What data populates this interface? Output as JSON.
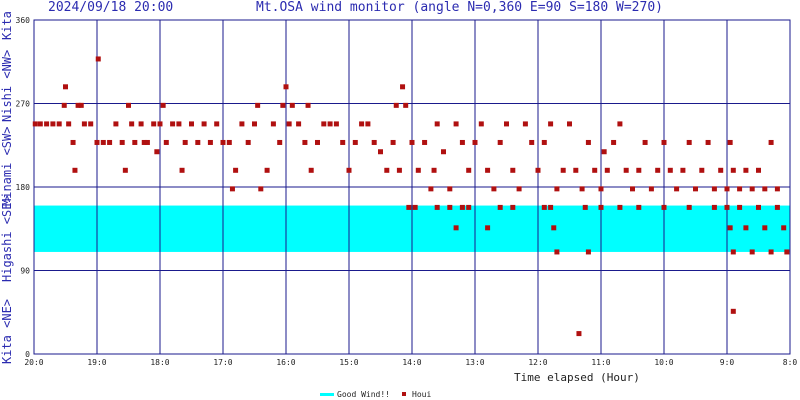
{
  "header": {
    "datetime": "2024/09/18 20:00",
    "title": "Mt.OSA wind monitor (angle N=0,360 E=90 S=180 W=270)"
  },
  "side_labels": [
    {
      "id": "kita-top",
      "text": "Kita"
    },
    {
      "id": "nishi",
      "text": "Nishi <NW>"
    },
    {
      "id": "minami",
      "text": "Minami <SW>"
    },
    {
      "id": "higashi",
      "text": "Higashi <SE>"
    },
    {
      "id": "kita-bottom",
      "text": "Kita <NE>"
    }
  ],
  "chart_data": {
    "type": "scatter",
    "title": "Mt.OSA wind monitor (angle N=0,360 E=90 S=180 W=270)",
    "xlabel": "Time elapsed (Hour)",
    "ylabel": "",
    "x_ticks": [
      "20:0",
      "19:0",
      "18:0",
      "17:0",
      "16:0",
      "15:0",
      "14:0",
      "13:0",
      "12:0",
      "11:0",
      "10:0",
      "9:0",
      "8:0"
    ],
    "xlim": [
      0,
      12
    ],
    "ylim": [
      0,
      360
    ],
    "y_ticks": [
      0,
      90,
      180,
      270,
      360
    ],
    "grid": true,
    "good_wind_band": [
      110,
      160
    ],
    "good_wind_color": "#00ffff",
    "legend_position": "bottom",
    "series": [
      {
        "name": "Houi",
        "color": "#b01010",
        "points": [
          [
            0.02,
            248
          ],
          [
            0.1,
            248
          ],
          [
            0.2,
            248
          ],
          [
            0.3,
            248
          ],
          [
            0.4,
            248
          ],
          [
            0.48,
            268
          ],
          [
            0.5,
            288
          ],
          [
            0.55,
            248
          ],
          [
            0.62,
            228
          ],
          [
            0.65,
            198
          ],
          [
            0.7,
            268
          ],
          [
            0.75,
            268
          ],
          [
            0.8,
            248
          ],
          [
            0.9,
            248
          ],
          [
            1.0,
            228
          ],
          [
            1.02,
            318
          ],
          [
            1.1,
            228
          ],
          [
            1.2,
            228
          ],
          [
            1.3,
            248
          ],
          [
            1.4,
            228
          ],
          [
            1.45,
            198
          ],
          [
            1.5,
            268
          ],
          [
            1.55,
            248
          ],
          [
            1.6,
            228
          ],
          [
            1.7,
            248
          ],
          [
            1.75,
            228
          ],
          [
            1.8,
            228
          ],
          [
            1.9,
            248
          ],
          [
            1.95,
            218
          ],
          [
            2.0,
            248
          ],
          [
            2.05,
            268
          ],
          [
            2.1,
            228
          ],
          [
            2.2,
            248
          ],
          [
            2.3,
            248
          ],
          [
            2.35,
            198
          ],
          [
            2.4,
            228
          ],
          [
            2.5,
            248
          ],
          [
            2.6,
            228
          ],
          [
            2.7,
            248
          ],
          [
            2.8,
            228
          ],
          [
            2.9,
            248
          ],
          [
            3.0,
            228
          ],
          [
            3.1,
            228
          ],
          [
            3.15,
            178
          ],
          [
            3.2,
            198
          ],
          [
            3.3,
            248
          ],
          [
            3.4,
            228
          ],
          [
            3.5,
            248
          ],
          [
            3.55,
            268
          ],
          [
            3.6,
            178
          ],
          [
            3.7,
            198
          ],
          [
            3.8,
            248
          ],
          [
            3.9,
            228
          ],
          [
            3.95,
            268
          ],
          [
            4.0,
            288
          ],
          [
            4.05,
            248
          ],
          [
            4.1,
            268
          ],
          [
            4.2,
            248
          ],
          [
            4.3,
            228
          ],
          [
            4.35,
            268
          ],
          [
            4.4,
            198
          ],
          [
            4.5,
            228
          ],
          [
            4.6,
            248
          ],
          [
            4.7,
            248
          ],
          [
            4.8,
            248
          ],
          [
            4.9,
            228
          ],
          [
            5.0,
            198
          ],
          [
            5.1,
            228
          ],
          [
            5.2,
            248
          ],
          [
            5.3,
            248
          ],
          [
            5.4,
            228
          ],
          [
            5.5,
            218
          ],
          [
            5.6,
            198
          ],
          [
            5.7,
            228
          ],
          [
            5.75,
            268
          ],
          [
            5.8,
            198
          ],
          [
            5.85,
            288
          ],
          [
            5.9,
            268
          ],
          [
            6.0,
            228
          ],
          [
            6.1,
            198
          ],
          [
            6.2,
            228
          ],
          [
            6.3,
            178
          ],
          [
            6.35,
            198
          ],
          [
            6.4,
            248
          ],
          [
            6.5,
            218
          ],
          [
            6.6,
            178
          ],
          [
            6.7,
            248
          ],
          [
            6.8,
            228
          ],
          [
            6.9,
            198
          ],
          [
            7.0,
            228
          ],
          [
            7.1,
            248
          ],
          [
            7.2,
            198
          ],
          [
            7.3,
            178
          ],
          [
            7.4,
            228
          ],
          [
            7.5,
            248
          ],
          [
            7.6,
            198
          ],
          [
            7.7,
            178
          ],
          [
            7.8,
            248
          ],
          [
            7.9,
            228
          ],
          [
            8.0,
            198
          ],
          [
            8.1,
            228
          ],
          [
            8.2,
            248
          ],
          [
            8.3,
            178
          ],
          [
            8.4,
            198
          ],
          [
            8.5,
            248
          ],
          [
            8.6,
            198
          ],
          [
            8.7,
            178
          ],
          [
            8.8,
            228
          ],
          [
            8.9,
            198
          ],
          [
            9.0,
            178
          ],
          [
            9.05,
            218
          ],
          [
            9.1,
            198
          ],
          [
            9.2,
            228
          ],
          [
            9.3,
            248
          ],
          [
            9.4,
            198
          ],
          [
            9.5,
            178
          ],
          [
            9.6,
            198
          ],
          [
            9.7,
            228
          ],
          [
            9.8,
            178
          ],
          [
            9.9,
            198
          ],
          [
            10.0,
            228
          ],
          [
            10.1,
            198
          ],
          [
            10.2,
            178
          ],
          [
            10.3,
            198
          ],
          [
            10.4,
            228
          ],
          [
            10.5,
            178
          ],
          [
            10.6,
            198
          ],
          [
            10.7,
            228
          ],
          [
            10.8,
            178
          ],
          [
            10.9,
            198
          ],
          [
            11.0,
            178
          ],
          [
            11.05,
            228
          ],
          [
            11.1,
            198
          ],
          [
            11.2,
            178
          ],
          [
            11.3,
            198
          ],
          [
            11.4,
            178
          ],
          [
            11.5,
            198
          ],
          [
            11.6,
            178
          ],
          [
            11.7,
            228
          ],
          [
            11.8,
            178
          ],
          [
            5.95,
            158
          ],
          [
            6.05,
            158
          ],
          [
            6.4,
            158
          ],
          [
            6.6,
            158
          ],
          [
            6.7,
            136
          ],
          [
            6.8,
            158
          ],
          [
            6.9,
            158
          ],
          [
            7.2,
            136
          ],
          [
            7.4,
            158
          ],
          [
            7.6,
            158
          ],
          [
            8.1,
            158
          ],
          [
            8.2,
            158
          ],
          [
            8.25,
            136
          ],
          [
            8.3,
            110
          ],
          [
            8.75,
            158
          ],
          [
            8.8,
            110
          ],
          [
            9.0,
            158
          ],
          [
            9.3,
            158
          ],
          [
            9.6,
            158
          ],
          [
            10.0,
            158
          ],
          [
            10.4,
            158
          ],
          [
            10.8,
            158
          ],
          [
            11.0,
            158
          ],
          [
            11.05,
            136
          ],
          [
            11.1,
            110
          ],
          [
            11.2,
            158
          ],
          [
            11.3,
            136
          ],
          [
            11.4,
            110
          ],
          [
            11.5,
            158
          ],
          [
            11.6,
            136
          ],
          [
            11.7,
            110
          ],
          [
            11.8,
            158
          ],
          [
            11.9,
            136
          ],
          [
            11.95,
            110
          ],
          [
            8.65,
            22
          ],
          [
            11.1,
            46
          ]
        ]
      }
    ]
  },
  "legend": {
    "good_wind_label": "Good Wind!!",
    "houi_label": "Houi"
  }
}
